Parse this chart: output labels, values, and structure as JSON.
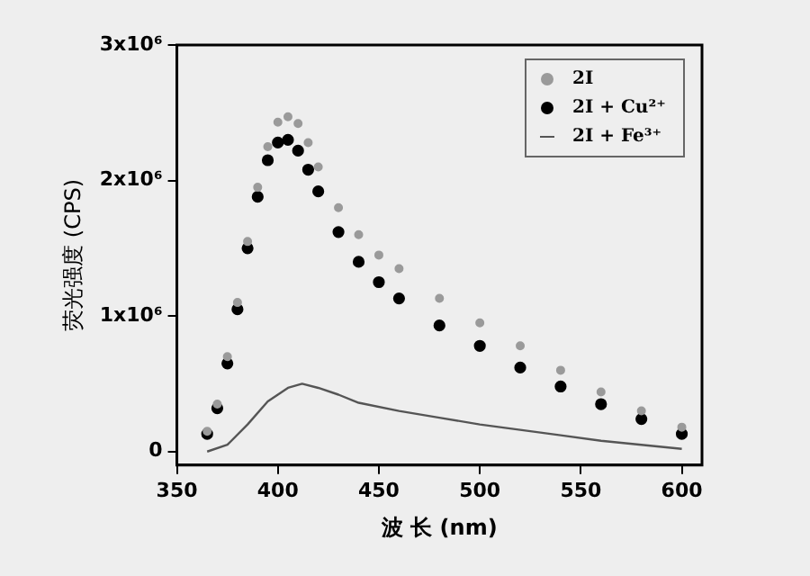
{
  "chart_data": {
    "type": "scatter",
    "xlabel": "波 长 (nm)",
    "ylabel": "荧光强度 (CPS)",
    "xlim": [
      350,
      610
    ],
    "ylim": [
      -100000,
      3000000
    ],
    "xticks": [
      350,
      400,
      450,
      500,
      550,
      600
    ],
    "yticks": [
      {
        "value": 0,
        "label": "0"
      },
      {
        "value": 1000000,
        "label": "1x10⁶"
      },
      {
        "value": 2000000,
        "label": "2x10⁶"
      },
      {
        "value": 3000000,
        "label": "3x10⁶"
      }
    ],
    "grid": false,
    "legend": "top right",
    "series": [
      {
        "name": "2I",
        "marker": "circle",
        "color": "#9a9a9a",
        "x": [
          365,
          370,
          375,
          380,
          385,
          390,
          395,
          400,
          405,
          410,
          415,
          420,
          430,
          440,
          450,
          460,
          480,
          500,
          520,
          540,
          560,
          580,
          600
        ],
        "values": [
          150000,
          350000,
          700000,
          1100000,
          1550000,
          1950000,
          2250000,
          2430000,
          2470000,
          2420000,
          2280000,
          2100000,
          1800000,
          1600000,
          1450000,
          1350000,
          1130000,
          950000,
          780000,
          600000,
          440000,
          300000,
          180000
        ]
      },
      {
        "name": "2I + Cu²⁺",
        "marker": "circle",
        "color": "#000000",
        "x": [
          365,
          370,
          375,
          380,
          385,
          390,
          395,
          400,
          405,
          410,
          415,
          420,
          430,
          440,
          450,
          460,
          480,
          500,
          520,
          540,
          560,
          580,
          600
        ],
        "values": [
          130000,
          320000,
          650000,
          1050000,
          1500000,
          1880000,
          2150000,
          2280000,
          2300000,
          2220000,
          2080000,
          1920000,
          1620000,
          1400000,
          1250000,
          1130000,
          930000,
          780000,
          620000,
          480000,
          350000,
          240000,
          130000
        ]
      },
      {
        "name": "2I + Fe³⁺",
        "type": "line",
        "marker": "none",
        "color": "#555555",
        "x": [
          365,
          375,
          385,
          395,
          405,
          412,
          420,
          430,
          440,
          460,
          480,
          500,
          520,
          540,
          560,
          580,
          600
        ],
        "values": [
          0,
          50000,
          200000,
          370000,
          470000,
          500000,
          470000,
          420000,
          360000,
          300000,
          250000,
          200000,
          160000,
          120000,
          80000,
          50000,
          20000
        ]
      }
    ]
  }
}
